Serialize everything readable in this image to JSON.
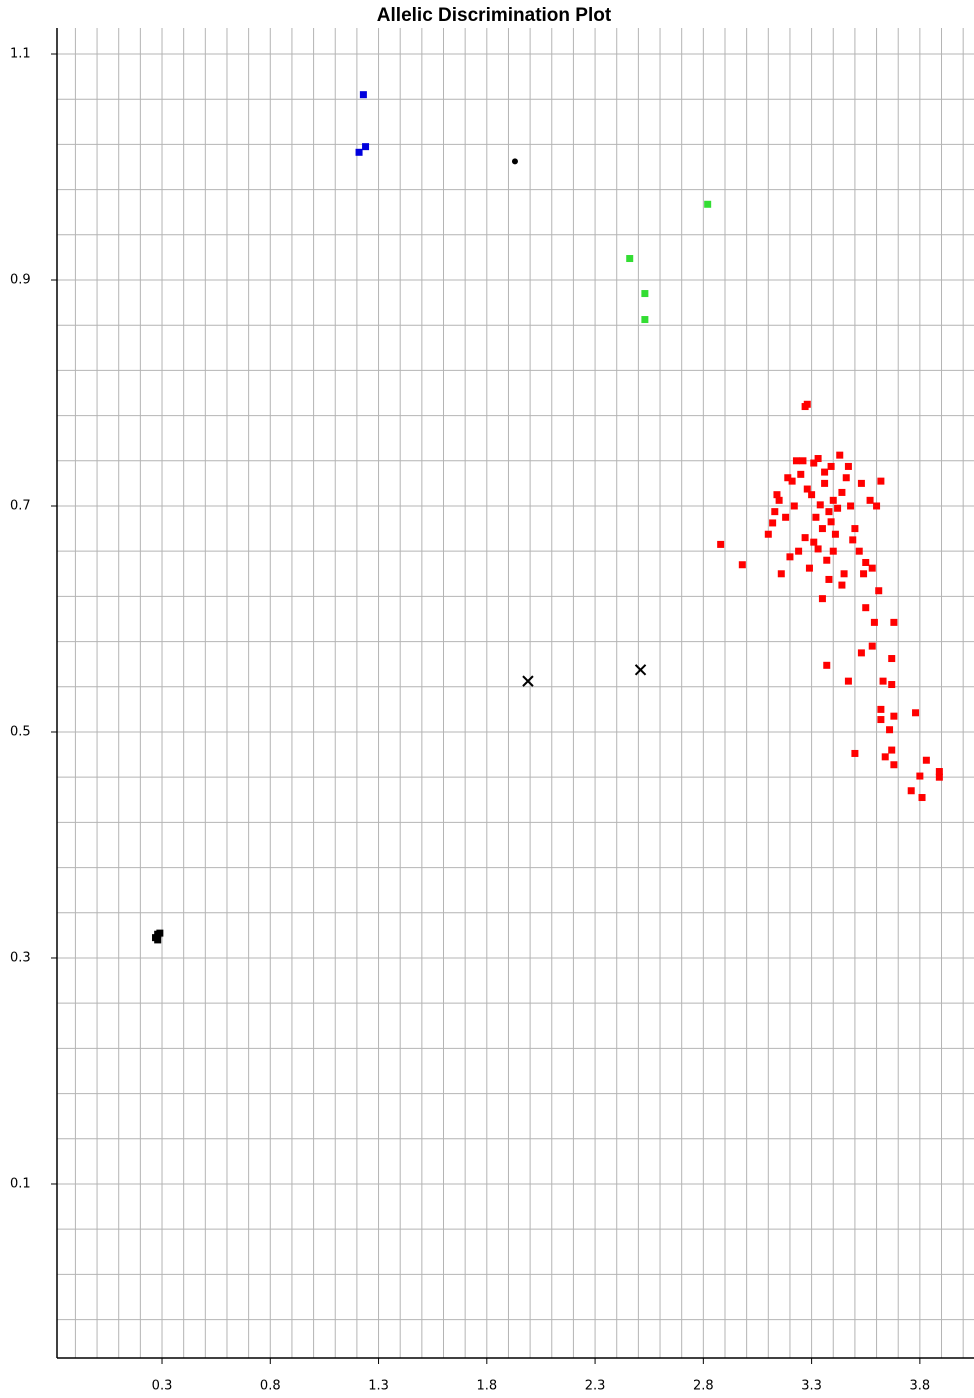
{
  "chart_data": {
    "type": "scatter",
    "title": "Allelic Discrimination Plot",
    "xlim": [
      -0.185,
      4.05
    ],
    "ylim": [
      -0.054,
      1.123
    ],
    "xticks": [
      0.3,
      0.8,
      1.3,
      1.8,
      2.3,
      2.8,
      3.3,
      3.8
    ],
    "yticks": [
      0.1,
      0.3,
      0.5,
      0.7,
      0.9,
      1.1
    ],
    "grid": true,
    "x_gridlines": [
      -0.1,
      0.0,
      0.1,
      0.2,
      0.3,
      0.4,
      0.5,
      0.6,
      0.7,
      0.8,
      0.9,
      1.0,
      1.1,
      1.2,
      1.3,
      1.4,
      1.5,
      1.6,
      1.7,
      1.8,
      1.9,
      2.0,
      2.1,
      2.2,
      2.3,
      2.4,
      2.5,
      2.6,
      2.7,
      2.8,
      2.9,
      3.0,
      3.1,
      3.2,
      3.3,
      3.4,
      3.5,
      3.6,
      3.7,
      3.8,
      3.9,
      4.0
    ],
    "y_gridlines": [
      1.1,
      1.06,
      1.02,
      0.98,
      0.94,
      0.9,
      0.86,
      0.82,
      0.78,
      0.74,
      0.7,
      0.66,
      0.62,
      0.58,
      0.54,
      0.5,
      0.46,
      0.42,
      0.38,
      0.34,
      0.3,
      0.26,
      0.22,
      0.18,
      0.14,
      0.1,
      0.06,
      0.02,
      -0.02
    ],
    "series": [
      {
        "color": "#ff0000",
        "marker": "square",
        "x": [
          3.27,
          3.28,
          2.88,
          2.98,
          3.37,
          3.5,
          3.47,
          3.55,
          3.59,
          3.68,
          3.53,
          3.58,
          3.67,
          3.63,
          3.67,
          3.62,
          3.68,
          3.62,
          3.66,
          3.78,
          3.67,
          3.64,
          3.68,
          3.83,
          3.8,
          3.89,
          3.89,
          3.76,
          3.81,
          3.34,
          3.3,
          3.38,
          3.36,
          3.32,
          3.4,
          3.28,
          3.42,
          3.25,
          3.35,
          3.44,
          3.22,
          3.31,
          3.39,
          3.46,
          3.18,
          3.27,
          3.33,
          3.41,
          3.15,
          3.12,
          3.2,
          3.48,
          3.5,
          3.52,
          3.55,
          3.58,
          3.61,
          3.6,
          3.45,
          3.37,
          3.29,
          3.24,
          3.16,
          3.1,
          3.13,
          3.19,
          3.23,
          3.26,
          3.43,
          3.47,
          3.53,
          3.57,
          3.35,
          3.38,
          3.31,
          3.4,
          3.36,
          3.33,
          3.21,
          3.14,
          3.49,
          3.54,
          3.62,
          3.44,
          3.39
        ],
        "y": [
          0.788,
          0.79,
          0.666,
          0.648,
          0.559,
          0.481,
          0.545,
          0.61,
          0.597,
          0.597,
          0.57,
          0.576,
          0.565,
          0.545,
          0.542,
          0.52,
          0.514,
          0.511,
          0.502,
          0.517,
          0.484,
          0.478,
          0.471,
          0.475,
          0.461,
          0.465,
          0.46,
          0.448,
          0.442,
          0.701,
          0.71,
          0.695,
          0.72,
          0.69,
          0.705,
          0.715,
          0.698,
          0.728,
          0.68,
          0.712,
          0.7,
          0.738,
          0.735,
          0.725,
          0.69,
          0.672,
          0.662,
          0.675,
          0.705,
          0.685,
          0.655,
          0.7,
          0.68,
          0.66,
          0.65,
          0.645,
          0.625,
          0.7,
          0.64,
          0.652,
          0.645,
          0.66,
          0.64,
          0.675,
          0.695,
          0.725,
          0.74,
          0.74,
          0.745,
          0.735,
          0.72,
          0.705,
          0.618,
          0.635,
          0.668,
          0.66,
          0.73,
          0.742,
          0.722,
          0.71,
          0.67,
          0.64,
          0.722,
          0.63,
          0.686
        ]
      },
      {
        "color": "#33dd33",
        "marker": "square",
        "x": [
          2.82,
          2.46,
          2.53,
          2.53
        ],
        "y": [
          0.967,
          0.919,
          0.888,
          0.865
        ]
      },
      {
        "color": "#0000dd",
        "marker": "square",
        "x": [
          1.23,
          1.21,
          1.24
        ],
        "y": [
          1.064,
          1.013,
          1.018
        ]
      },
      {
        "color": "#000000",
        "marker": "circle",
        "x": [
          1.93
        ],
        "y": [
          1.005
        ]
      },
      {
        "color": "#000000",
        "marker": "x",
        "x": [
          1.99,
          2.51
        ],
        "y": [
          0.545,
          0.555
        ]
      },
      {
        "color": "#000000",
        "marker": "square",
        "x": [
          0.27,
          0.28,
          0.29,
          0.28
        ],
        "y": [
          0.318,
          0.321,
          0.322,
          0.316
        ]
      }
    ]
  }
}
